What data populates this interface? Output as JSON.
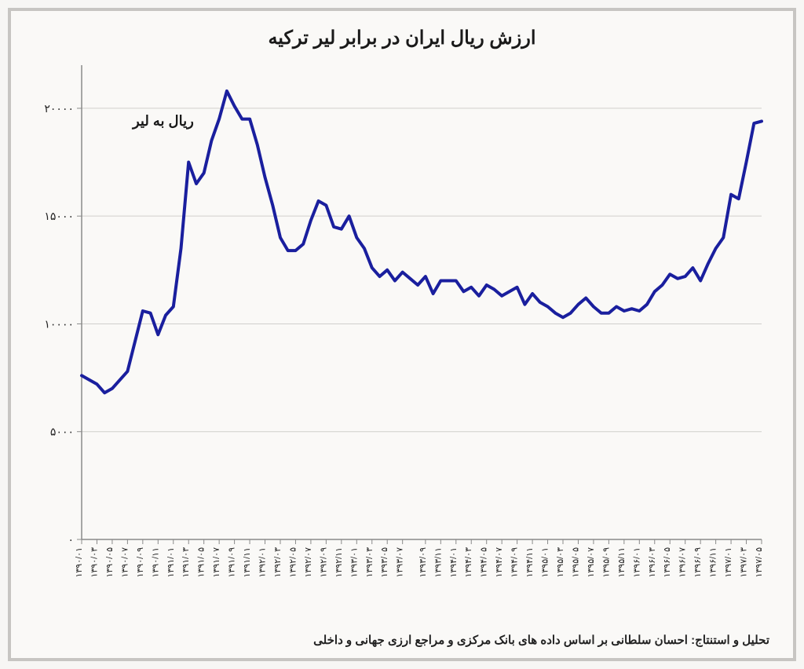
{
  "chart": {
    "type": "line",
    "title": "ارزش ریال ایران در برابر لیر ترکیه",
    "title_fontsize": 24,
    "y_axis_label": "ریال به لیر",
    "y_axis_label_fontsize": 18,
    "footer": "تحلیل و استنتاج: احسان سلطانی بر اساس داده های بانک مرکزی و مراجع ارزی جهانی و داخلی",
    "footer_fontsize": 15,
    "background_color": "#faf9f7",
    "border_color": "#c7c5c2",
    "line_color": "#1a1f9e",
    "line_width": 4,
    "axis_color": "#8a8a8a",
    "grid_color": "#d0cfcc",
    "tick_fontsize": 14,
    "xtick_fontsize": 11,
    "ylim": [
      0,
      22000
    ],
    "yticks": [
      0,
      5000,
      10000,
      15000,
      20000
    ],
    "ytick_labels": [
      "۰",
      "۵۰۰۰",
      "۱۰۰۰۰",
      "۱۵۰۰۰",
      "۲۰۰۰۰"
    ],
    "x_labels": [
      "۱۳۹۰/۰۱",
      "۱۳۹۰/۰۳",
      "۱۳۹۰/۰۵",
      "۱۳۹۰/۰۷",
      "۱۳۹۰/۰۹",
      "۱۳۹۰/۱۱",
      "۱۳۹۱/۰۱",
      "۱۳۹۱/۰۳",
      "۱۳۹۱/۰۵",
      "۱۳۹۱/۰۷",
      "۱۳۹۱/۰۹",
      "۱۳۹۱/۱۱",
      "۱۳۹۲/۰۱",
      "۱۳۹۲/۰۳",
      "۱۳۹۲/۰۵",
      "۱۳۹۲/۰۷",
      "۱۳۹۲/۰۹",
      "۱۳۹۲/۱۱",
      "۱۳۹۳/۰۱",
      "۱۳۹۳/۰۳",
      "۱۳۹۳/۰۵",
      "۱۳۹۳/۰۷",
      "۱۳۹۳/۰۹",
      "۱۳۹۳/۱۱",
      "۱۳۹۴/۰۱",
      "۱۳۹۴/۰۳",
      "۱۳۹۴/۰۵",
      "۱۳۹۴/۰۷",
      "۱۳۹۴/۰۹",
      "۱۳۹۴/۱۱",
      "۱۳۹۵/۰۱",
      "۱۳۹۵/۰۳",
      "۱۳۹۵/۰۵",
      "۱۳۹۵/۰۷",
      "۱۳۹۵/۰۹",
      "۱۳۹۵/۱۱",
      "۱۳۹۶/۰۱",
      "۱۳۹۶/۰۳",
      "۱۳۹۶/۰۵",
      "۱۳۹۶/۰۷",
      "۱۳۹۶/۰۹",
      "۱۳۹۶/۱۱",
      "۱۳۹۷/۰۱",
      "۱۳۹۷/۰۳",
      "۱۳۹۷/۰۵"
    ],
    "values": [
      7600,
      7400,
      7200,
      6800,
      7000,
      7400,
      7800,
      9200,
      10600,
      10500,
      9500,
      10400,
      10800,
      13500,
      17500,
      16500,
      17000,
      18500,
      19500,
      20800,
      20100,
      19500,
      19500,
      18300,
      16800,
      15500,
      14000,
      13400,
      13400,
      13700,
      14800,
      15700,
      15500,
      14500,
      14400,
      15000,
      14000,
      13500,
      12600,
      12200,
      12500,
      12000,
      12400,
      12100,
      11800,
      12200,
      11400,
      12000,
      12000,
      12000,
      11500,
      11700,
      11300,
      11800,
      11600,
      11300,
      11500,
      11700,
      10900,
      11400,
      11000,
      10800,
      10500,
      10300,
      10500,
      10900,
      11200,
      10800,
      10500,
      10500,
      10800,
      10600,
      10700,
      10600,
      10900,
      11500,
      11800,
      12300,
      12100,
      12200,
      12600,
      12000,
      12800,
      13500,
      14000,
      16000,
      15800,
      17500,
      19300,
      19400
    ]
  }
}
